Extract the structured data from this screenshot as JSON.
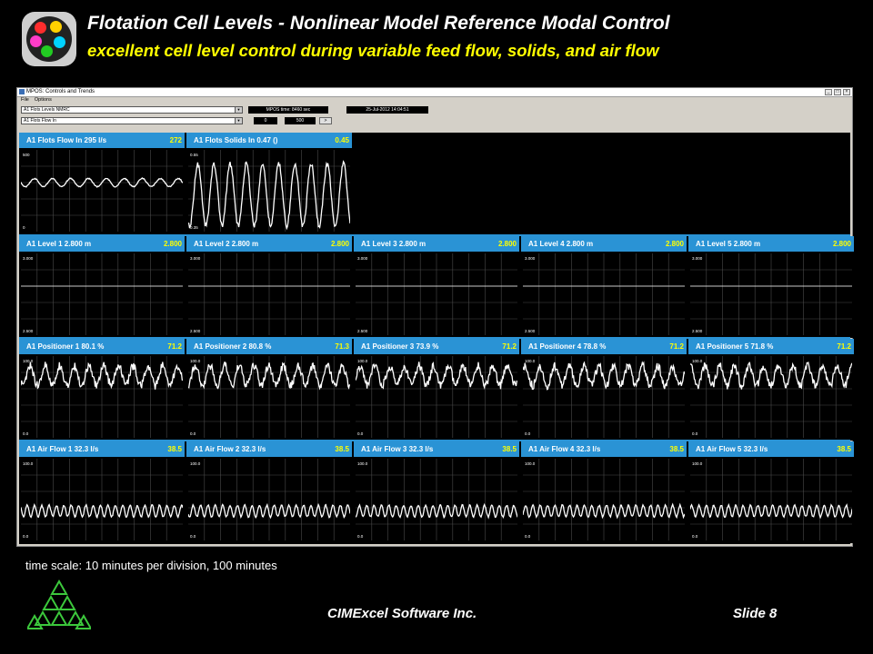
{
  "slide": {
    "title": "Flotation Cell Levels - Nonlinear Model Reference Modal Control",
    "subtitle": "excellent cell level control during variable feed flow, solids, and air flow",
    "time_scale": "time scale: 10 minutes per division, 100 minutes",
    "company": "CIMExcel Software Inc.",
    "slide_number": "Slide 8"
  },
  "window": {
    "title": "MPOS: Controls and Trends",
    "menu": [
      "File",
      "Options"
    ],
    "combo1": "A1 Flots Levels NMRC",
    "combo2": "A1 Flots Flow In",
    "mpos_time": "MPOS time: 8460  sec",
    "date": "25-Jul-2012  14:04:51",
    "range_min": "0",
    "range_max": "500",
    "go_button": ">"
  },
  "colors": {
    "header_blue": "#2a93d5",
    "value_yellow": "#ffff00",
    "trend_white": "#ffffff",
    "grid_gray": "#4a4a4a"
  },
  "panels": [
    {
      "row": 0,
      "col": 0,
      "label": "A1 Flots Flow In   295  l/s",
      "value": "272",
      "ymax": "500",
      "ymin": "0",
      "pattern": "flow"
    },
    {
      "row": 0,
      "col": 1,
      "label": "A1 Flots Solids In   0.47  ()",
      "value": "0.45",
      "ymax": "0.55",
      "ymin": "0.35",
      "pattern": "solids"
    },
    {
      "row": 1,
      "col": 0,
      "label": "A1 Level 1   2.800  m",
      "value": "2.800",
      "ymax": "3.000",
      "ymin": "2.500",
      "pattern": "level"
    },
    {
      "row": 1,
      "col": 1,
      "label": "A1 Level 2   2.800  m",
      "value": "2.800",
      "ymax": "3.000",
      "ymin": "2.500",
      "pattern": "level"
    },
    {
      "row": 1,
      "col": 2,
      "label": "A1 Level 3   2.800  m",
      "value": "2.800",
      "ymax": "3.000",
      "ymin": "2.500",
      "pattern": "level"
    },
    {
      "row": 1,
      "col": 3,
      "label": "A1 Level 4   2.800  m",
      "value": "2.800",
      "ymax": "3.000",
      "ymin": "2.500",
      "pattern": "level"
    },
    {
      "row": 1,
      "col": 4,
      "label": "A1 Level 5   2.800  m",
      "value": "2.800",
      "ymax": "3.000",
      "ymin": "2.500",
      "pattern": "level"
    },
    {
      "row": 2,
      "col": 0,
      "label": "A1 Positioner 1   80.1  %",
      "value": "71.2",
      "ymax": "100.0",
      "ymin": "0.0",
      "pattern": "positioner"
    },
    {
      "row": 2,
      "col": 1,
      "label": "A1 Positioner 2   80.8  %",
      "value": "71.3",
      "ymax": "100.0",
      "ymin": "0.0",
      "pattern": "positioner"
    },
    {
      "row": 2,
      "col": 2,
      "label": "A1 Positioner 3   73.9  %",
      "value": "71.2",
      "ymax": "100.0",
      "ymin": "0.0",
      "pattern": "positioner"
    },
    {
      "row": 2,
      "col": 3,
      "label": "A1 Positioner 4   78.8  %",
      "value": "71.2",
      "ymax": "100.0",
      "ymin": "0.0",
      "pattern": "positioner"
    },
    {
      "row": 2,
      "col": 4,
      "label": "A1 Positioner 5   71.8  %",
      "value": "71.2",
      "ymax": "100.0",
      "ymin": "0.0",
      "pattern": "positioner"
    },
    {
      "row": 3,
      "col": 0,
      "label": "A1 Air Flow 1   32.3  l/s",
      "value": "38.5",
      "ymax": "100.0",
      "ymin": "0.0",
      "pattern": "air"
    },
    {
      "row": 3,
      "col": 1,
      "label": "A1 Air Flow 2   32.3  l/s",
      "value": "38.5",
      "ymax": "100.0",
      "ymin": "0.0",
      "pattern": "air"
    },
    {
      "row": 3,
      "col": 2,
      "label": "A1 Air Flow 3   32.3  l/s",
      "value": "38.5",
      "ymax": "100.0",
      "ymin": "0.0",
      "pattern": "air"
    },
    {
      "row": 3,
      "col": 3,
      "label": "A1 Air Flow 4   32.3  l/s",
      "value": "38.5",
      "ymax": "100.0",
      "ymin": "0.0",
      "pattern": "air"
    },
    {
      "row": 3,
      "col": 4,
      "label": "A1 Air Flow 5   32.3  l/s",
      "value": "38.5",
      "ymax": "100.0",
      "ymin": "0.0",
      "pattern": "air"
    }
  ]
}
